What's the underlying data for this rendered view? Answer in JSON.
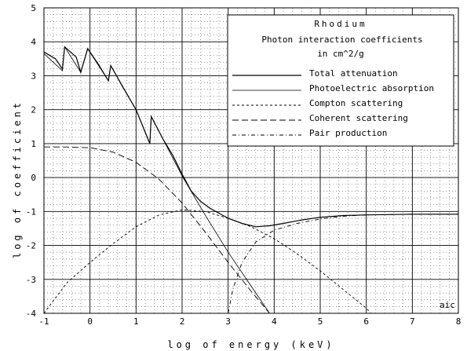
{
  "chart_data": {
    "type": "line",
    "title": "Rhodium",
    "subtitle_lines": [
      "Photon interaction coefficients",
      "in cm^2/g"
    ],
    "xlabel": "log of energy (keV)",
    "ylabel": "log of coefficient",
    "xlim": [
      -1,
      8
    ],
    "ylim": [
      -4,
      5
    ],
    "xticks": [
      "-1",
      "0",
      "1",
      "2",
      "3",
      "4",
      "5",
      "6",
      "7",
      "8"
    ],
    "yticks": [
      "5",
      "4",
      "3",
      "2",
      "1",
      "0",
      "-1",
      "-2",
      "-3",
      "-4"
    ],
    "grid": "major solid, minor dotted",
    "legend_position": "top-right",
    "corner_label": "aic",
    "series": [
      {
        "name": "Total attenuation",
        "dash": "solid",
        "points": [
          [
            -1,
            3.7
          ],
          [
            -0.75,
            3.5
          ],
          [
            -0.6,
            3.2
          ],
          [
            -0.55,
            3.85
          ],
          [
            -0.3,
            3.55
          ],
          [
            -0.2,
            3.1
          ],
          [
            -0.05,
            3.8
          ],
          [
            0.2,
            3.3
          ],
          [
            0.4,
            2.85
          ],
          [
            0.45,
            3.3
          ],
          [
            0.7,
            2.7
          ],
          [
            1.0,
            2.0
          ],
          [
            1.3,
            1.0
          ],
          [
            1.33,
            1.8
          ],
          [
            1.6,
            1.1
          ],
          [
            1.8,
            0.65
          ],
          [
            2.0,
            0.1
          ],
          [
            2.2,
            -0.4
          ],
          [
            2.4,
            -0.7
          ],
          [
            2.6,
            -0.9
          ],
          [
            2.8,
            -1.05
          ],
          [
            3.0,
            -1.2
          ],
          [
            3.3,
            -1.35
          ],
          [
            3.6,
            -1.45
          ],
          [
            3.9,
            -1.42
          ],
          [
            4.2,
            -1.35
          ],
          [
            4.6,
            -1.25
          ],
          [
            5.0,
            -1.17
          ],
          [
            5.5,
            -1.12
          ],
          [
            6.0,
            -1.1
          ],
          [
            7.0,
            -1.08
          ],
          [
            8.0,
            -1.08
          ]
        ]
      },
      {
        "name": "Photoelectric absorption",
        "dash": "solid-thin",
        "points": [
          [
            -1,
            3.65
          ],
          [
            -0.6,
            3.15
          ],
          [
            -0.55,
            3.85
          ],
          [
            -0.2,
            3.1
          ],
          [
            -0.05,
            3.8
          ],
          [
            0.4,
            2.85
          ],
          [
            0.45,
            3.3
          ],
          [
            1.0,
            2.0
          ],
          [
            1.3,
            1.0
          ],
          [
            1.33,
            1.8
          ],
          [
            2.0,
            0.05
          ],
          [
            2.5,
            -1.1
          ],
          [
            3.0,
            -2.2
          ],
          [
            3.5,
            -3.2
          ],
          [
            3.9,
            -4.0
          ]
        ]
      },
      {
        "name": "Compton scattering",
        "dash": "dashed-short",
        "points": [
          [
            -1,
            -4.0
          ],
          [
            -0.5,
            -3.1
          ],
          [
            0,
            -2.5
          ],
          [
            0.5,
            -1.95
          ],
          [
            1.0,
            -1.45
          ],
          [
            1.5,
            -1.1
          ],
          [
            2.0,
            -0.95
          ],
          [
            2.5,
            -1.0
          ],
          [
            3.0,
            -1.2
          ],
          [
            3.5,
            -1.45
          ],
          [
            4.0,
            -1.8
          ],
          [
            4.5,
            -2.25
          ],
          [
            5.0,
            -2.75
          ],
          [
            5.5,
            -3.3
          ],
          [
            6.0,
            -3.85
          ],
          [
            6.1,
            -4.0
          ]
        ]
      },
      {
        "name": "Coherent scattering",
        "dash": "dashed-long",
        "points": [
          [
            -1,
            0.9
          ],
          [
            -0.5,
            0.9
          ],
          [
            0,
            0.88
          ],
          [
            0.5,
            0.75
          ],
          [
            1.0,
            0.45
          ],
          [
            1.5,
            -0.05
          ],
          [
            2.0,
            -0.75
          ],
          [
            2.5,
            -1.6
          ],
          [
            3.0,
            -2.5
          ],
          [
            3.5,
            -3.35
          ],
          [
            3.9,
            -4.0
          ]
        ]
      },
      {
        "name": "Pair production",
        "dash": "dotted-dash",
        "points": [
          [
            3.0,
            -4.0
          ],
          [
            3.1,
            -3.3
          ],
          [
            3.3,
            -2.5
          ],
          [
            3.6,
            -1.9
          ],
          [
            4.0,
            -1.55
          ],
          [
            4.5,
            -1.35
          ],
          [
            5.0,
            -1.22
          ],
          [
            5.5,
            -1.14
          ],
          [
            6.0,
            -1.1
          ],
          [
            7.0,
            -1.08
          ],
          [
            8.0,
            -1.08
          ]
        ]
      }
    ]
  }
}
